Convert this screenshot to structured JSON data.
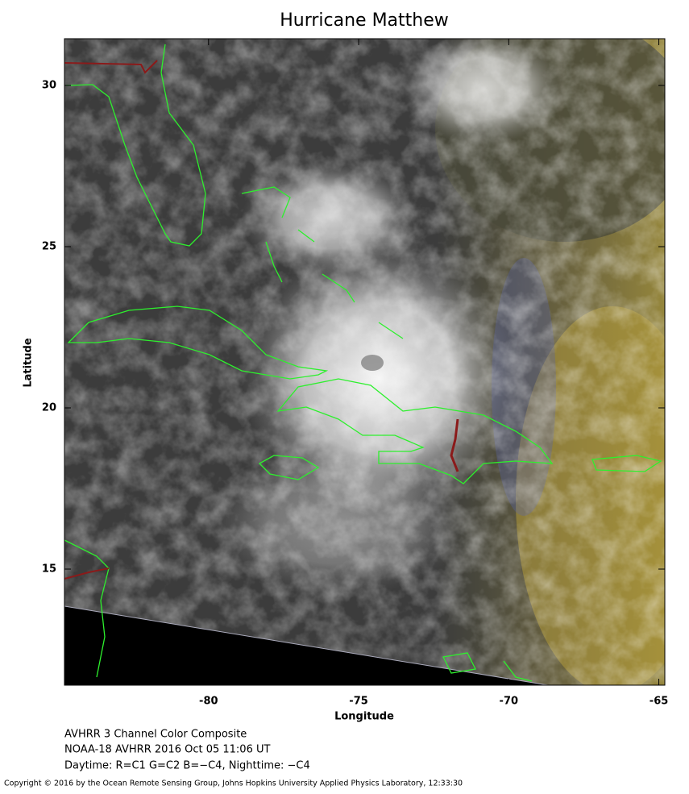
{
  "map": {
    "title": "Hurricane Matthew",
    "xlabel": "Longitude",
    "ylabel": "Latitude",
    "xlim": [
      -84.8,
      -64.8
    ],
    "ylim": [
      11.4,
      31.45
    ],
    "xticks": [
      -80,
      -75,
      -70,
      -65
    ],
    "yticks": [
      15,
      20,
      25,
      30
    ]
  },
  "captions": [
    "AVHRR 3 Channel Color Composite",
    "NOAA-18 AVHRR 2016 Oct 05 11:06 UT",
    "Daytime: R=C1 G=C2 B=−C4, Nighttime: −C4"
  ],
  "copyright": "Copyright © 2016 by the Ocean Remote Sensing Group, Johns Hopkins University Applied Physics Laboratory, 12:33:30"
}
